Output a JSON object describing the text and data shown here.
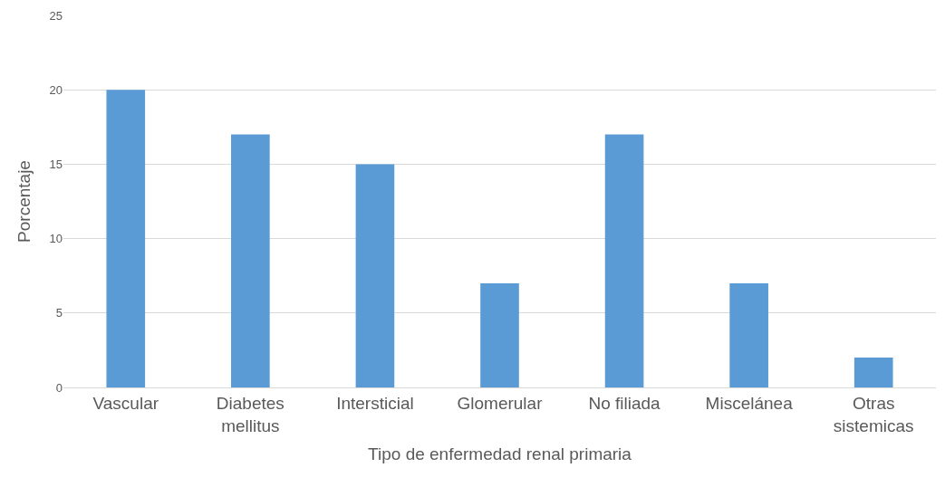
{
  "chart_data": {
    "type": "bar",
    "xlabel": "Tipo de enfermedad renal primaria",
    "ylabel": "Porcentaje",
    "categories": [
      "Vascular",
      "Diabetes mellitus",
      "Intersticial",
      "Glomerular",
      "No filiada",
      "Miscelánea",
      "Otras sistemicas"
    ],
    "values": [
      20,
      17,
      15,
      7,
      17,
      7,
      2
    ],
    "color": "#5b9bd5",
    "ylim": [
      0,
      25
    ],
    "yticks": [
      0,
      5,
      10,
      15,
      20,
      25
    ],
    "grid": "y",
    "legend": false
  }
}
